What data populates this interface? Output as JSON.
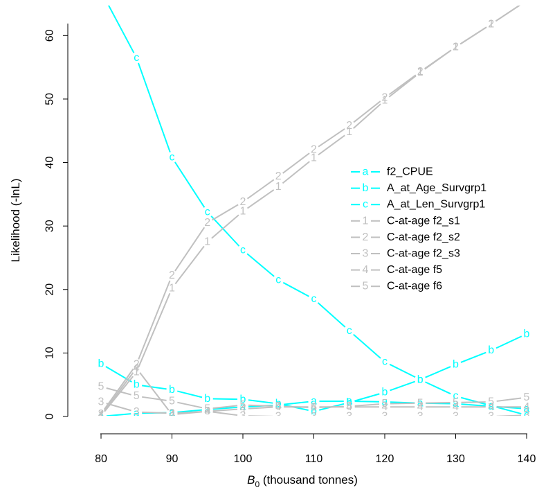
{
  "chart_data": {
    "type": "line",
    "xlabel": {
      "symbol": "B",
      "subscript": "0",
      "rest": " (thousand tonnes)"
    },
    "ylabel": "Likelihood (-lnL)",
    "xlim": [
      80,
      140
    ],
    "ylim": [
      0,
      62
    ],
    "x_ticks": [
      80,
      90,
      100,
      110,
      120,
      130,
      140
    ],
    "y_ticks": [
      0,
      10,
      20,
      30,
      40,
      50,
      60
    ],
    "x": [
      80,
      85,
      90,
      95,
      100,
      105,
      110,
      115,
      120,
      125,
      130,
      135,
      140
    ],
    "colors": {
      "cyan": "#00FFFF",
      "grey": "#C0C0C0"
    },
    "legend_position": "center-right",
    "series": [
      {
        "name": "f2_CPUE",
        "symbol": "a",
        "color": "#00FFFF",
        "values": [
          0,
          0.5,
          0.6,
          1.1,
          1.5,
          1.8,
          2.4,
          2.4,
          2.3,
          2.1,
          2.0,
          1.6,
          1.2
        ]
      },
      {
        "name": "A_at_Age_Survgrp1",
        "symbol": "b",
        "color": "#00FFFF",
        "values": [
          8.3,
          5.0,
          4.2,
          2.8,
          2.7,
          2.0,
          0.8,
          2.2,
          3.8,
          5.8,
          8.2,
          10.4,
          13.0
        ]
      },
      {
        "name": "A_at_Len_Survgrp1",
        "symbol": "c",
        "color": "#00FFFF",
        "values": [
          67.0,
          56.5,
          40.8,
          32.2,
          26.2,
          21.5,
          18.5,
          13.5,
          8.6,
          5.8,
          3.2,
          1.7,
          0.2
        ]
      },
      {
        "name": "C-at-age f2_s1",
        "symbol": "1",
        "color": "#C0C0C0",
        "values": [
          0.1,
          7.0,
          20.2,
          27.5,
          32.3,
          36.2,
          40.7,
          44.8,
          49.8,
          54.2,
          58.2,
          61.8,
          65.5
        ]
      },
      {
        "name": "C-at-age f2_s2",
        "symbol": "2",
        "color": "#C0C0C0",
        "values": [
          0.4,
          8.2,
          22.2,
          30.5,
          33.8,
          37.8,
          42.0,
          45.8,
          50.2,
          54.3,
          58.2,
          61.8,
          65.5
        ]
      },
      {
        "name": "C-at-age f2_s3",
        "symbol": "3",
        "color": "#C0C0C0",
        "values": [
          2.3,
          0.7,
          0.5,
          0.8,
          0.1,
          0.0,
          0.0,
          0.0,
          0.0,
          0.0,
          0.0,
          0.0,
          0.2
        ]
      },
      {
        "name": "C-at-age f5",
        "symbol": "4",
        "color": "#C0C0C0",
        "values": [
          0.2,
          7.6,
          0.3,
          0.8,
          1.2,
          1.5,
          1.5,
          1.5,
          1.5,
          1.5,
          1.5,
          1.5,
          1.5
        ]
      },
      {
        "name": "C-at-age f6",
        "symbol": "5",
        "color": "#C0C0C0",
        "values": [
          4.7,
          3.2,
          2.4,
          1.2,
          1.8,
          1.6,
          1.4,
          1.6,
          2.0,
          2.1,
          2.2,
          2.3,
          3.0
        ]
      }
    ]
  }
}
